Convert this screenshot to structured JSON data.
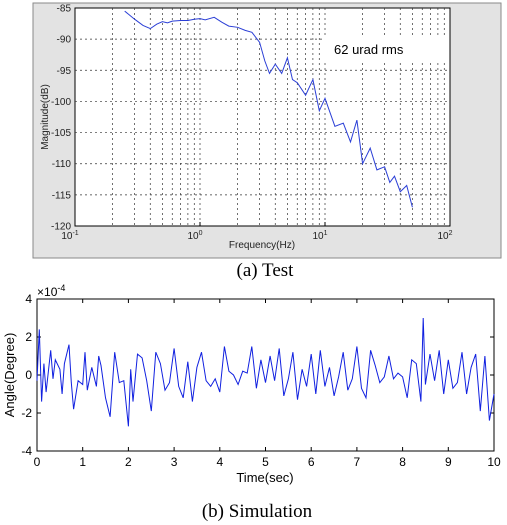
{
  "chart_data": [
    {
      "type": "line",
      "x_scale": "log",
      "xlabel": "Frequency(Hz)",
      "ylabel": "Magnitude(dB)",
      "xlim": [
        0.1,
        100
      ],
      "ylim": [
        -120,
        -85
      ],
      "x_ticks": [
        0.1,
        1,
        10,
        100
      ],
      "x_tick_labels": [
        {
          "base": "10",
          "exp": "-1"
        },
        {
          "base": "10",
          "exp": "0"
        },
        {
          "base": "10",
          "exp": "1"
        },
        {
          "base": "10",
          "exp": "2"
        }
      ],
      "y_ticks": [
        -85,
        -90,
        -95,
        -100,
        -105,
        -110,
        -115,
        -120
      ],
      "grid": "dotted vertical and horizontal",
      "annotation": "62 urad rms",
      "caption": "(a) Test",
      "line_color": "#2b3fd6",
      "series": [
        {
          "x": [
            0.25,
            0.3,
            0.35,
            0.4,
            0.45,
            0.5,
            0.55,
            0.6,
            0.7,
            0.8,
            0.9,
            1.0,
            1.1,
            1.3,
            1.5,
            1.7,
            2.0,
            2.3,
            2.6,
            3.0,
            3.3,
            3.6,
            4.0,
            4.5,
            5.0,
            5.5,
            6.0,
            7.0,
            8.0,
            9.0,
            10,
            12,
            14,
            16,
            18,
            20,
            23,
            26,
            30,
            33,
            36,
            40,
            45,
            50
          ],
          "y": [
            -85.5,
            -86.8,
            -87.8,
            -88.3,
            -87.6,
            -87.2,
            -87.4,
            -87.1,
            -87.0,
            -87.0,
            -86.8,
            -86.7,
            -86.9,
            -86.5,
            -87.3,
            -87.9,
            -88.1,
            -88.6,
            -88.9,
            -90.5,
            -93.5,
            -95.5,
            -94.0,
            -95.5,
            -93.0,
            -96.5,
            -97.0,
            -99.0,
            -96.5,
            -101.5,
            -99.5,
            -104.0,
            -103.5,
            -106.5,
            -103.0,
            -110.0,
            -107.5,
            -111.0,
            -110.5,
            -113.0,
            -112.0,
            -114.5,
            -113.5,
            -117.0
          ]
        }
      ]
    },
    {
      "type": "line",
      "xlabel": "Time(sec)",
      "ylabel": "Angle(Degree)",
      "y_multiplier": {
        "base": "10",
        "exp": "-4"
      },
      "xlim": [
        0,
        10
      ],
      "ylim": [
        -4,
        4
      ],
      "x_ticks": [
        0,
        1,
        2,
        3,
        4,
        5,
        6,
        7,
        8,
        9,
        10
      ],
      "y_ticks": [
        -4,
        -2,
        0,
        2,
        4
      ],
      "grid": "off",
      "caption": "(b) Simulation",
      "line_color": "#1020e0",
      "series": [
        {
          "x": [
            0,
            0.05,
            0.1,
            0.15,
            0.2,
            0.25,
            0.3,
            0.35,
            0.4,
            0.5,
            0.55,
            0.6,
            0.7,
            0.75,
            0.8,
            0.9,
            1.0,
            1.05,
            1.1,
            1.2,
            1.3,
            1.35,
            1.4,
            1.5,
            1.6,
            1.7,
            1.8,
            1.9,
            2.0,
            2.05,
            2.1,
            2.2,
            2.3,
            2.4,
            2.5,
            2.6,
            2.7,
            2.8,
            2.9,
            3.0,
            3.1,
            3.2,
            3.3,
            3.4,
            3.5,
            3.6,
            3.7,
            3.8,
            3.9,
            4.0,
            4.1,
            4.2,
            4.3,
            4.4,
            4.5,
            4.6,
            4.7,
            4.8,
            4.9,
            5.0,
            5.1,
            5.2,
            5.3,
            5.4,
            5.5,
            5.6,
            5.7,
            5.8,
            5.9,
            6.0,
            6.1,
            6.2,
            6.3,
            6.4,
            6.5,
            6.6,
            6.7,
            6.8,
            6.9,
            7.0,
            7.1,
            7.2,
            7.3,
            7.4,
            7.5,
            7.6,
            7.7,
            7.8,
            7.9,
            8.0,
            8.1,
            8.2,
            8.3,
            8.4,
            8.45,
            8.5,
            8.6,
            8.7,
            8.8,
            8.9,
            9.0,
            9.1,
            9.2,
            9.3,
            9.4,
            9.5,
            9.6,
            9.7,
            9.8,
            9.9,
            10.0
          ],
          "y": [
            -0.3,
            2.4,
            -1.4,
            0.6,
            -0.9,
            0.2,
            1.3,
            -0.2,
            0.8,
            0.3,
            -1.0,
            0.6,
            1.6,
            -0.4,
            -1.8,
            -0.3,
            -0.5,
            1.2,
            -0.8,
            0.4,
            -0.6,
            1.0,
            0.5,
            -1.2,
            -2.2,
            1.2,
            -0.4,
            -0.3,
            -2.7,
            0.3,
            -1.4,
            1.1,
            0.9,
            -0.3,
            -1.9,
            1.2,
            0.6,
            -0.8,
            -0.4,
            1.4,
            -0.6,
            -1.2,
            0.7,
            -1.4,
            0.4,
            1.2,
            -0.3,
            -0.6,
            -0.2,
            -0.9,
            1.5,
            0.2,
            0.0,
            -0.5,
            0.2,
            0.1,
            1.5,
            -0.7,
            0.8,
            -0.4,
            1.0,
            -0.3,
            1.4,
            -1.1,
            -0.2,
            1.2,
            -1.3,
            0.3,
            -0.6,
            1.1,
            -1.0,
            1.3,
            -0.6,
            0.4,
            -1.1,
            -0.1,
            1.2,
            -0.8,
            -0.2,
            1.5,
            -0.7,
            -1.2,
            1.3,
            0.5,
            -0.4,
            -0.1,
            1.0,
            -0.2,
            0.1,
            -0.1,
            -1.2,
            0.8,
            0.6,
            -1.4,
            3.0,
            -0.5,
            1.1,
            -0.3,
            1.3,
            -1.0,
            0.8,
            -0.7,
            -0.4,
            1.2,
            -1.0,
            0.4,
            1.1,
            -1.9,
            1.0,
            -2.4,
            -1.0
          ]
        }
      ]
    }
  ]
}
